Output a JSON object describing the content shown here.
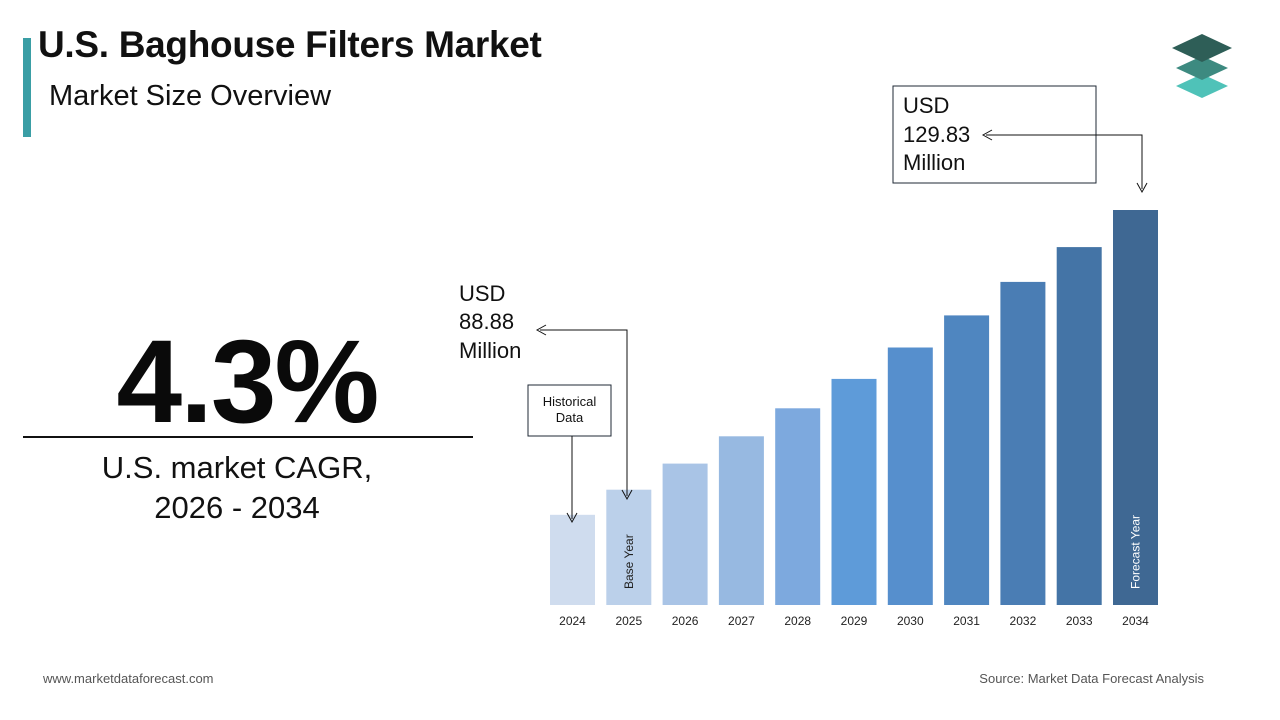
{
  "header": {
    "title": "U.S. Baghouse Filters Market",
    "subtitle": "Market Size Overview"
  },
  "logo": {
    "icon": "stacked-layers-icon",
    "colors": [
      "#2e5e57",
      "#3d8a80",
      "#4fc2b8"
    ]
  },
  "cagr": {
    "value": "4.3%",
    "label_line1": "U.S. market CAGR,",
    "label_line2": "2026 - 2034"
  },
  "callouts": {
    "base": {
      "line1": "USD",
      "line2": "88.88",
      "line3": "Million"
    },
    "forecast": {
      "line1": "USD",
      "line2": "129.83",
      "line3": "Million"
    },
    "historical": {
      "line1": "Historical",
      "line2": "Data"
    }
  },
  "chart_data": {
    "type": "bar",
    "title": "",
    "xlabel": "",
    "ylabel": "",
    "unit": "USD Million",
    "categories": [
      "2024",
      "2025",
      "2026",
      "2027",
      "2028",
      "2029",
      "2030",
      "2031",
      "2032",
      "2033",
      "2034"
    ],
    "values": [
      85.2,
      88.88,
      92.7,
      96.7,
      100.8,
      105.1,
      109.7,
      114.4,
      119.3,
      124.4,
      129.83
    ],
    "colors": [
      "#cfdcee",
      "#bbd0ea",
      "#a9c4e6",
      "#97b9e1",
      "#7da9de",
      "#5e9bd9",
      "#568fcd",
      "#4f86c0",
      "#4a7db4",
      "#4474a6",
      "#3f6893"
    ],
    "bar_labels": {
      "2025": "Base Year",
      "2034": "Forecast Year"
    },
    "grid": false,
    "legend": "none"
  },
  "footer": {
    "website": "www.marketdataforecast.com",
    "source": "Source: Market Data Forecast Analysis"
  }
}
